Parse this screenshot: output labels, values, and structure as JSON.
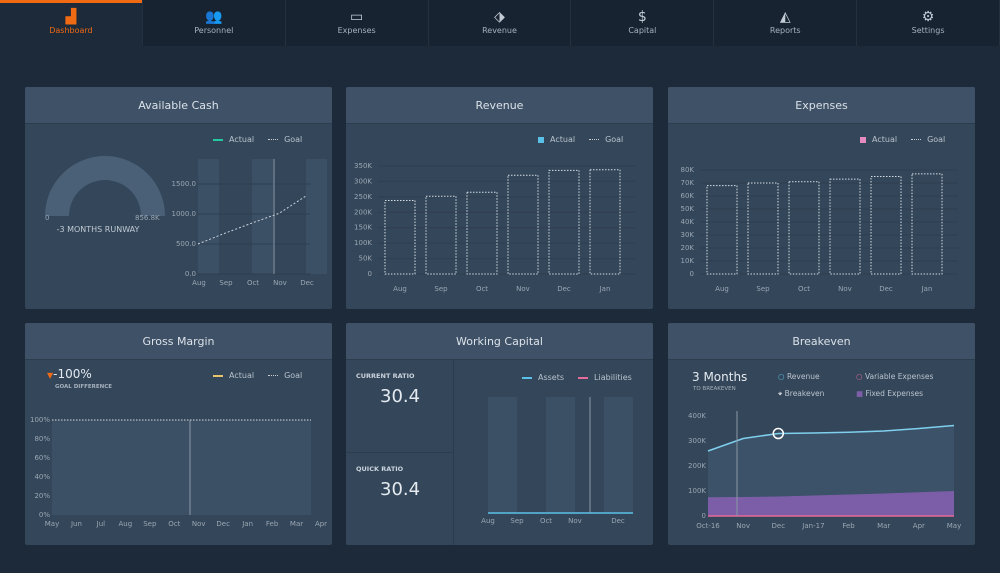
{
  "nav": [
    {
      "label": "Dashboard",
      "icon": "dashboard-chart-icon"
    },
    {
      "label": "Personnel",
      "icon": "people-icon"
    },
    {
      "label": "Expenses",
      "icon": "credit-card-icon"
    },
    {
      "label": "Revenue",
      "icon": "tag-icon"
    },
    {
      "label": "Capital",
      "icon": "dollar-coin-icon"
    },
    {
      "label": "Reports",
      "icon": "area-chart-icon"
    },
    {
      "label": "Settings",
      "icon": "gear-icon"
    }
  ],
  "colors": {
    "accent": "#f06a14",
    "actual_cash": "#26c6a0",
    "revenue": "#5bc0e8",
    "expenses": "#e68bc0",
    "assets": "#5bc0e8",
    "liabilities": "#e66a9a",
    "fixed": "#7b5ea7",
    "gm_actual": "#e8c46a"
  },
  "cash": {
    "title": "Available Cash",
    "legend_actual": "Actual",
    "legend_goal": "Goal",
    "gauge_min": "0",
    "gauge_max": "856.8K",
    "runway": "-3 MONTHS RUNWAY"
  },
  "revenue": {
    "title": "Revenue",
    "legend_actual": "Actual",
    "legend_goal": "Goal"
  },
  "expenses": {
    "title": "Expenses",
    "legend_actual": "Actual",
    "legend_goal": "Goal"
  },
  "gross": {
    "title": "Gross Margin",
    "value": "-100%",
    "value_label": "GOAL DIFFERENCE",
    "legend_actual": "Actual",
    "legend_goal": "Goal"
  },
  "wc": {
    "title": "Working Capital",
    "current_label": "CURRENT RATIO",
    "current": "30.4",
    "quick_label": "QUICK RATIO",
    "quick": "30.4",
    "legend_assets": "Assets",
    "legend_liabilities": "Liabilities"
  },
  "be": {
    "title": "Breakeven",
    "months": "3 Months",
    "months_label": "TO BREAKEVEN",
    "legend": [
      "Revenue",
      "Variable Expenses",
      "Breakeven",
      "Fixed Expenses"
    ]
  },
  "chart_data": [
    {
      "type": "line",
      "name": "Available Cash",
      "categories": [
        "Aug",
        "Sep",
        "Oct",
        "Nov",
        "Dec"
      ],
      "yticks": [
        "0.0",
        "500.0",
        "1000.0",
        "1500.0"
      ],
      "ylim": [
        0,
        1800
      ],
      "series": [
        {
          "name": "Goal",
          "values": [
            500,
            680,
            850,
            1010,
            1300
          ]
        }
      ]
    },
    {
      "type": "bar",
      "name": "Revenue",
      "categories": [
        "Aug",
        "Sep",
        "Oct",
        "Nov",
        "Dec",
        "Jan"
      ],
      "yticks": [
        "0",
        "50K",
        "100K",
        "150K",
        "200K",
        "250K",
        "300K",
        "350K"
      ],
      "ylim": [
        0,
        350
      ],
      "series": [
        {
          "name": "Goal",
          "values": [
            238,
            252,
            265,
            320,
            336,
            338
          ]
        }
      ]
    },
    {
      "type": "bar",
      "name": "Expenses",
      "categories": [
        "Aug",
        "Sep",
        "Oct",
        "Nov",
        "Dec",
        "Jan"
      ],
      "yticks": [
        "0",
        "10K",
        "20K",
        "30K",
        "40K",
        "50K",
        "60K",
        "70K",
        "80K"
      ],
      "ylim": [
        0,
        80
      ],
      "series": [
        {
          "name": "Goal",
          "values": [
            68,
            70,
            71,
            73,
            75,
            77
          ]
        }
      ]
    },
    {
      "type": "line",
      "name": "Gross Margin",
      "categories": [
        "May",
        "Jun",
        "Jul",
        "Aug",
        "Sep",
        "Oct",
        "Nov",
        "Dec",
        "Jan",
        "Feb",
        "Mar",
        "Apr"
      ],
      "yticks": [
        "0%",
        "20%",
        "40%",
        "60%",
        "80%",
        "100%"
      ],
      "ylim": [
        0,
        100
      ],
      "series": [
        {
          "name": "Goal",
          "values": [
            100,
            100,
            100,
            100,
            100,
            100,
            100,
            100,
            100,
            100,
            100,
            100
          ]
        }
      ]
    },
    {
      "type": "line",
      "name": "Working Capital",
      "categories": [
        "Aug",
        "Sep",
        "Oct",
        "Nov",
        "Dec"
      ],
      "series": [
        {
          "name": "Assets",
          "values": [
            0,
            0,
            0,
            0,
            0
          ]
        }
      ]
    },
    {
      "type": "area",
      "name": "Breakeven",
      "categories": [
        "Oct-16",
        "Nov",
        "Dec",
        "Jan-17",
        "Feb",
        "Mar",
        "Apr",
        "May"
      ],
      "yticks": [
        "0",
        "100K",
        "200K",
        "300K",
        "400K"
      ],
      "ylim": [
        0,
        400
      ],
      "series": [
        {
          "name": "Revenue",
          "values": [
            260,
            310,
            330,
            332,
            335,
            340,
            350,
            362
          ]
        },
        {
          "name": "Fixed Expenses",
          "values": [
            75,
            76,
            78,
            82,
            86,
            90,
            95,
            100
          ]
        },
        {
          "name": "Variable Expenses",
          "values": [
            0,
            0,
            0,
            0,
            0,
            0,
            0,
            0
          ]
        }
      ],
      "breakeven_index": 2
    }
  ]
}
